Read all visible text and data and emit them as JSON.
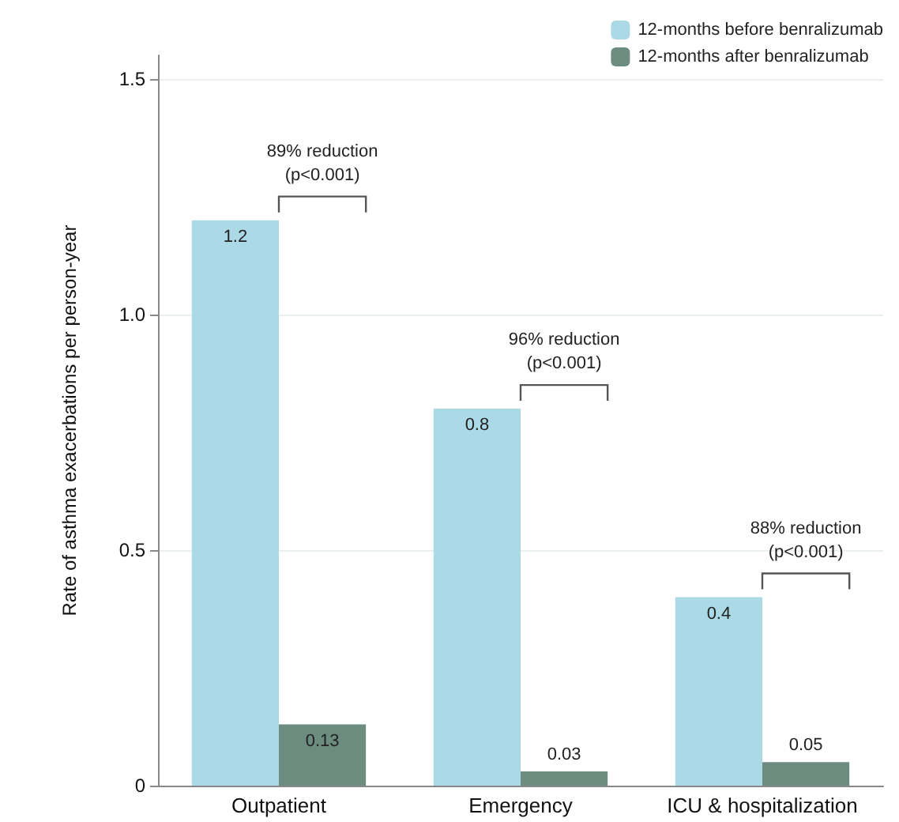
{
  "chart_data": {
    "type": "bar",
    "ylabel": "Rate of asthma exacerbations per person-year",
    "categories": [
      "Outpatient",
      "Emergency",
      "ICU & hospitalization"
    ],
    "series": [
      {
        "name": "12-months before benralizumab",
        "color": "#acd9e6",
        "values": [
          1.2,
          0.8,
          0.4
        ]
      },
      {
        "name": "12-months after benralizumab",
        "color": "#6b8c7e",
        "values": [
          0.13,
          0.03,
          0.05
        ]
      }
    ],
    "ylim": [
      0,
      1.55
    ],
    "yticks": [
      0,
      {
        "value": 0.5,
        "label": "0.5"
      },
      {
        "value": 1,
        "label": "1.0"
      },
      {
        "value": 1.5,
        "label": "1.5"
      }
    ],
    "grid": "y",
    "legend": "top right",
    "data_labels": true,
    "annotations": [
      "89% reduction\n(p<0.001)",
      "96% reduction\n(p<0.001)",
      "88% reduction\n(p<0.001)"
    ]
  }
}
